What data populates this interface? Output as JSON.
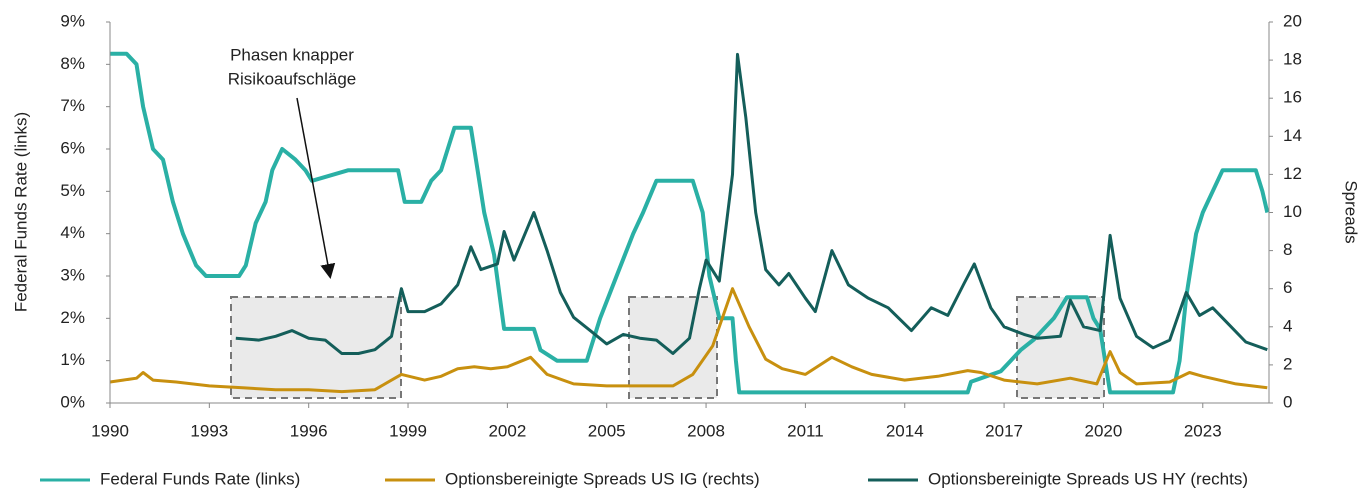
{
  "chart_data": {
    "type": "line",
    "annotation": [
      "Phasen knapper",
      "Risikoaufschläge"
    ],
    "ylabel": "Federal Funds Rate (links)",
    "y2label": "Spreads",
    "xlim": [
      1990,
      2025
    ],
    "xticks": [
      1990,
      1993,
      1996,
      1999,
      2002,
      2005,
      2008,
      2011,
      2014,
      2017,
      2020,
      2023
    ],
    "ylim": [
      0,
      9
    ],
    "yticks": [
      {
        "value": 0,
        "label": "0%"
      },
      {
        "value": 1,
        "label": "1%"
      },
      {
        "value": 2,
        "label": "2%"
      },
      {
        "value": 3,
        "label": "3%"
      },
      {
        "value": 4,
        "label": "4%"
      },
      {
        "value": 5,
        "label": "5%"
      },
      {
        "value": 6,
        "label": "6%"
      },
      {
        "value": 7,
        "label": "7%"
      },
      {
        "value": 8,
        "label": "8%"
      },
      {
        "value": 9,
        "label": "9%"
      }
    ],
    "y2lim": [
      0,
      20
    ],
    "y2ticks": [
      0,
      2,
      4,
      6,
      8,
      10,
      12,
      14,
      16,
      18,
      20
    ],
    "legend": "bottom",
    "series": [
      {
        "name": "Federal Funds Rate (links)",
        "color": "#2ab0a5",
        "axis": "y",
        "x": [
          1990.0,
          1990.5,
          1990.8,
          1991.0,
          1991.3,
          1991.6,
          1991.9,
          1992.2,
          1992.6,
          1992.9,
          1993.9,
          1994.1,
          1994.4,
          1994.7,
          1994.9,
          1995.2,
          1995.6,
          1995.9,
          1996.1,
          1997.2,
          1998.7,
          1998.9,
          1999.4,
          1999.7,
          2000.0,
          2000.4,
          2000.9,
          2001.1,
          2001.3,
          2001.6,
          2001.9,
          2002.8,
          2003.0,
          2003.5,
          2004.4,
          2004.8,
          2005.3,
          2005.8,
          2006.1,
          2006.5,
          2007.6,
          2007.9,
          2008.1,
          2008.4,
          2008.8,
          2008.9,
          2009.0,
          2015.9,
          2016.0,
          2016.9,
          2017.2,
          2017.5,
          2017.9,
          2018.2,
          2018.5,
          2018.9,
          2019.5,
          2019.7,
          2019.9,
          2020.2,
          2022.1,
          2022.3,
          2022.5,
          2022.8,
          2023.0,
          2023.3,
          2023.6,
          2024.6,
          2024.8,
          2024.95
        ],
        "values": [
          8.25,
          8.25,
          8.0,
          7.0,
          6.0,
          5.75,
          4.75,
          4.0,
          3.25,
          3.0,
          3.0,
          3.25,
          4.25,
          4.75,
          5.5,
          6.0,
          5.75,
          5.5,
          5.25,
          5.5,
          5.5,
          4.75,
          4.75,
          5.25,
          5.5,
          6.5,
          6.5,
          5.5,
          4.5,
          3.5,
          1.75,
          1.75,
          1.25,
          1.0,
          1.0,
          2.0,
          3.0,
          4.0,
          4.5,
          5.25,
          5.25,
          4.5,
          3.0,
          2.0,
          2.0,
          1.0,
          0.25,
          0.25,
          0.5,
          0.75,
          1.0,
          1.25,
          1.5,
          1.75,
          2.0,
          2.5,
          2.5,
          2.0,
          1.75,
          0.25,
          0.25,
          1.0,
          2.5,
          4.0,
          4.5,
          5.0,
          5.5,
          5.5,
          5.0,
          4.5
        ]
      },
      {
        "name": "Optionsbereinigte Spreads US IG (rechts)",
        "color": "#c8900f",
        "axis": "y2",
        "x": [
          1990.0,
          1990.8,
          1991.0,
          1991.3,
          1992.0,
          1993.0,
          1994.0,
          1995.0,
          1996.0,
          1997.0,
          1998.0,
          1998.8,
          1999.5,
          2000.0,
          2000.5,
          2001.0,
          2001.5,
          2002.0,
          2002.7,
          2003.2,
          2004.0,
          2005.0,
          2006.0,
          2007.0,
          2007.6,
          2008.2,
          2008.8,
          2009.3,
          2009.8,
          2010.3,
          2011.0,
          2011.8,
          2012.4,
          2013.0,
          2014.0,
          2015.0,
          2015.9,
          2016.3,
          2017.0,
          2018.0,
          2019.0,
          2019.8,
          2020.2,
          2020.5,
          2021.0,
          2022.0,
          2022.6,
          2023.0,
          2024.0,
          2024.95
        ],
        "values": [
          1.1,
          1.3,
          1.6,
          1.2,
          1.1,
          0.9,
          0.8,
          0.7,
          0.7,
          0.6,
          0.7,
          1.5,
          1.2,
          1.4,
          1.8,
          1.9,
          1.8,
          1.9,
          2.4,
          1.5,
          1.0,
          0.9,
          0.9,
          0.9,
          1.5,
          3.0,
          6.0,
          4.0,
          2.3,
          1.8,
          1.5,
          2.4,
          1.9,
          1.5,
          1.2,
          1.4,
          1.7,
          1.6,
          1.2,
          1.0,
          1.3,
          1.0,
          2.7,
          1.6,
          1.0,
          1.1,
          1.6,
          1.4,
          1.0,
          0.8
        ]
      },
      {
        "name": "Optionsbereinigte Spreads US HY (rechts)",
        "color": "#145e5a",
        "axis": "y2",
        "x": [
          1993.8,
          1994.5,
          1995.0,
          1995.5,
          1996.0,
          1996.5,
          1997.0,
          1997.5,
          1998.0,
          1998.5,
          1998.8,
          1999.0,
          1999.5,
          2000.0,
          2000.5,
          2000.9,
          2001.2,
          2001.7,
          2001.9,
          2002.2,
          2002.8,
          2003.2,
          2003.6,
          2004.0,
          2004.5,
          2005.0,
          2005.5,
          2006.0,
          2006.5,
          2007.0,
          2007.5,
          2007.8,
          2008.0,
          2008.4,
          2008.8,
          2008.95,
          2009.2,
          2009.5,
          2009.8,
          2010.2,
          2010.5,
          2011.0,
          2011.3,
          2011.8,
          2012.3,
          2012.9,
          2013.5,
          2014.2,
          2014.8,
          2015.3,
          2015.8,
          2016.1,
          2016.6,
          2017.0,
          2017.6,
          2018.0,
          2018.7,
          2019.0,
          2019.4,
          2019.9,
          2020.2,
          2020.5,
          2021.0,
          2021.5,
          2022.0,
          2022.5,
          2022.9,
          2023.3,
          2023.8,
          2024.3,
          2024.95
        ],
        "values": [
          3.4,
          3.3,
          3.5,
          3.8,
          3.4,
          3.3,
          2.6,
          2.6,
          2.8,
          3.5,
          6.0,
          4.8,
          4.8,
          5.2,
          6.2,
          8.2,
          7.0,
          7.3,
          9.0,
          7.5,
          10.0,
          8.0,
          5.8,
          4.5,
          3.8,
          3.1,
          3.6,
          3.4,
          3.3,
          2.6,
          3.4,
          6.0,
          7.5,
          6.4,
          12.0,
          18.3,
          15.0,
          10.0,
          7.0,
          6.2,
          6.8,
          5.5,
          4.8,
          8.0,
          6.2,
          5.5,
          5.0,
          3.8,
          5.0,
          4.6,
          6.3,
          7.3,
          5.0,
          4.0,
          3.6,
          3.4,
          3.5,
          5.4,
          4.0,
          3.8,
          8.8,
          5.5,
          3.5,
          2.9,
          3.3,
          5.8,
          4.6,
          5.0,
          4.1,
          3.2,
          2.8
        ]
      }
    ]
  }
}
